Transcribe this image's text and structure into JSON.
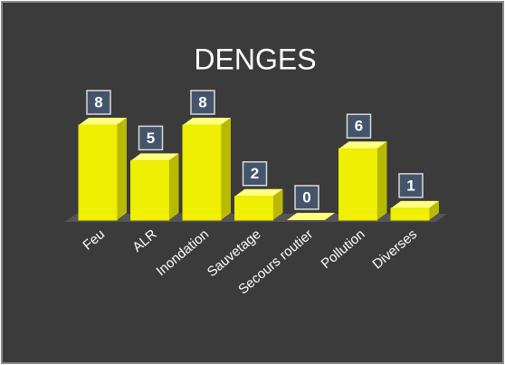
{
  "chart_data": {
    "type": "bar3d",
    "title": "DENGES",
    "categories": [
      "Feu",
      "ALR",
      "Inondation",
      "Sauvetage",
      "Secours routier",
      "Pollution",
      "Diverses"
    ],
    "values": [
      8,
      5,
      8,
      2,
      0,
      6,
      1
    ],
    "color": "#ffff00"
  }
}
